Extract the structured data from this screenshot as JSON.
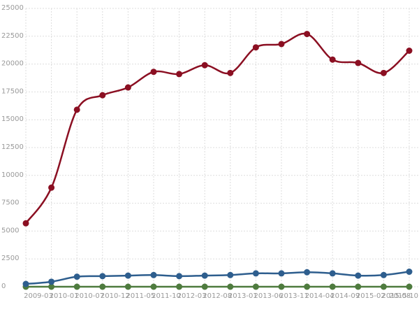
{
  "chart_data": {
    "type": "line",
    "categories": [
      "2009-03",
      "2010-01",
      "2010-07",
      "2010-12",
      "2011-05",
      "2011-10",
      "2012-03",
      "2012-08",
      "2013-01",
      "2013-06",
      "2013-11",
      "2014-04",
      "2014-09",
      "2015-02",
      "2015-08",
      "2015-10"
    ],
    "series": [
      {
        "color": "#8b0f22",
        "values": [
          5700,
          8900,
          15900,
          17200,
          17900,
          19300,
          19100,
          19900,
          19200,
          21500,
          21800,
          22700,
          20400,
          20100,
          19200,
          21200
        ]
      },
      {
        "color": "#2e5e8e",
        "values": [
          250,
          450,
          900,
          950,
          1000,
          1050,
          950,
          1000,
          1050,
          1200,
          1200,
          1300,
          1200,
          1000,
          1050,
          1350
        ]
      },
      {
        "color": "#4e7b3e",
        "values": [
          0,
          0,
          0,
          0,
          0,
          0,
          0,
          0,
          0,
          0,
          0,
          0,
          0,
          0,
          0,
          0
        ]
      }
    ],
    "ylim": [
      0,
      25000
    ],
    "yticks": [
      0,
      2500,
      5000,
      7500,
      10000,
      12500,
      15000,
      17500,
      20000,
      22500,
      25000
    ],
    "grid": true
  }
}
